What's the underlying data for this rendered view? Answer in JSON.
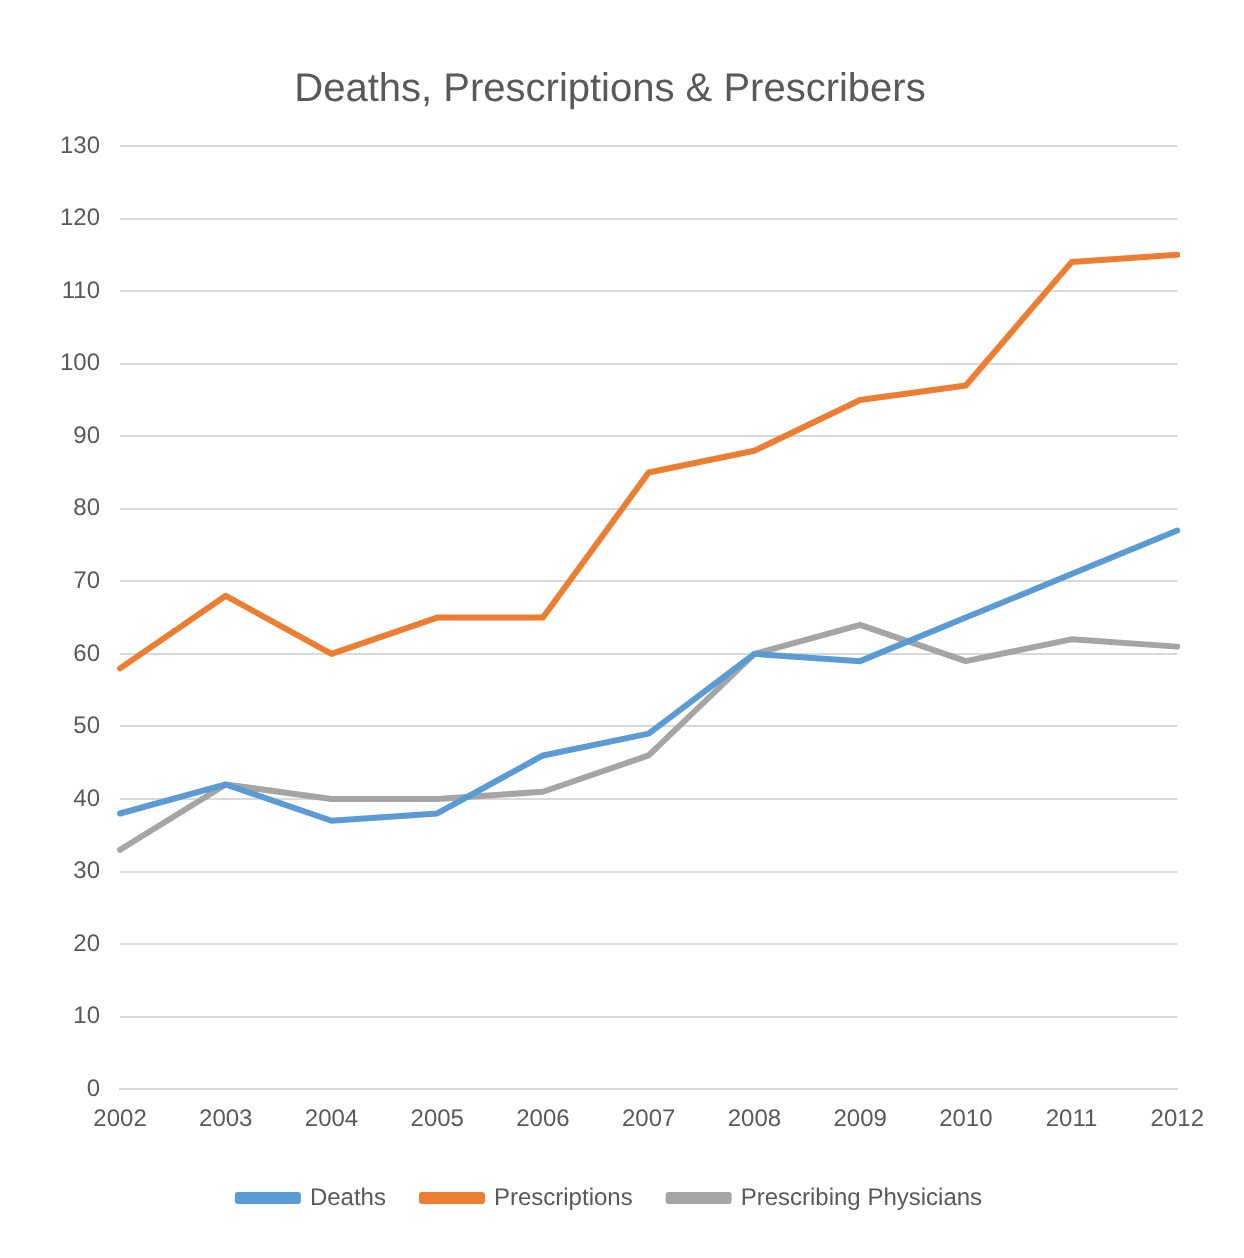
{
  "chart_data": {
    "type": "line",
    "title": "Deaths, Prescriptions & Prescribers",
    "categories": [
      "2002",
      "2003",
      "2004",
      "2005",
      "2006",
      "2007",
      "2008",
      "2009",
      "2010",
      "2011",
      "2012"
    ],
    "series": [
      {
        "name": "Deaths",
        "color": "#5b9bd5",
        "values": [
          38,
          42,
          37,
          38,
          46,
          49,
          60,
          59,
          65,
          71,
          77
        ]
      },
      {
        "name": "Prescriptions",
        "color": "#ed7d31",
        "values": [
          58,
          68,
          60,
          65,
          65,
          85,
          88,
          95,
          97,
          114,
          115
        ]
      },
      {
        "name": "Prescribing Physicians",
        "color": "#a5a5a5",
        "values": [
          33,
          42,
          40,
          40,
          41,
          46,
          60,
          64,
          59,
          62,
          61
        ]
      }
    ],
    "ylim": [
      0,
      130
    ],
    "yticks": [
      0,
      10,
      20,
      30,
      40,
      50,
      60,
      70,
      80,
      90,
      100,
      110,
      120,
      130
    ],
    "grid": "y",
    "legend": "bottom",
    "marker": "none"
  }
}
